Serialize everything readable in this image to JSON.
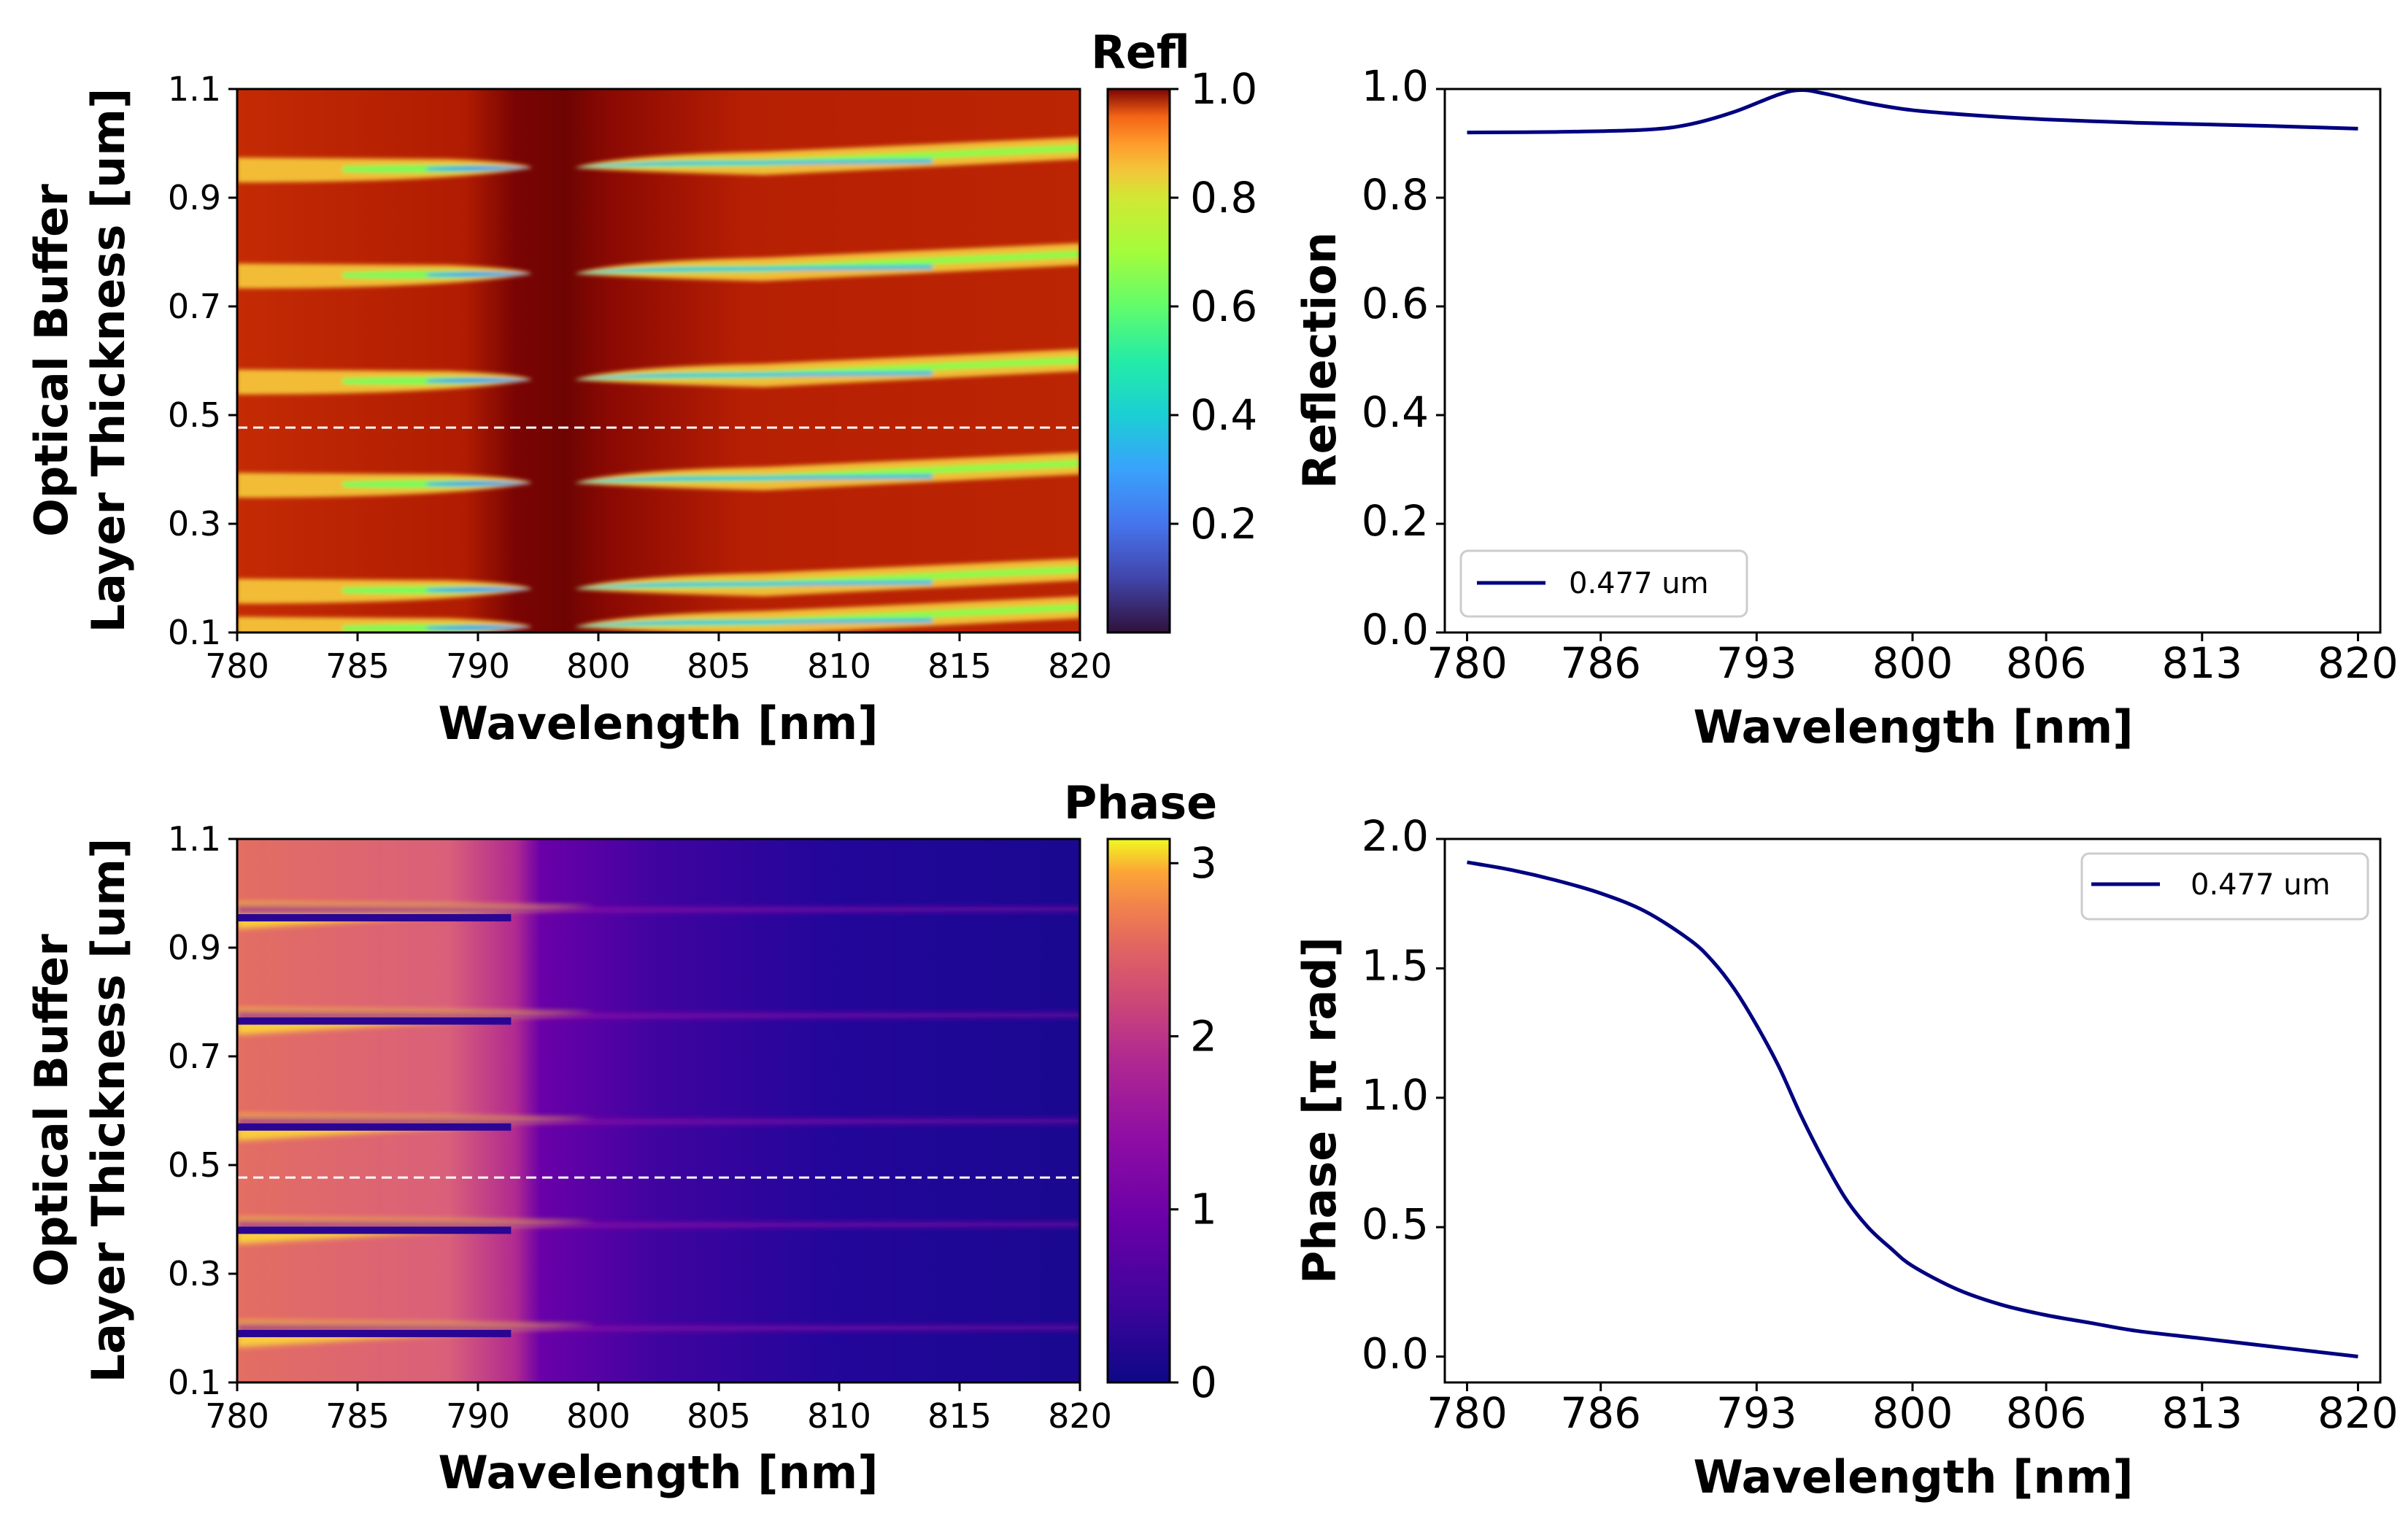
{
  "figure": {
    "layout": "2x2"
  },
  "chart_data": [
    {
      "type": "heatmap",
      "panel": "reflection-map",
      "xlabel": "Wavelength [nm]",
      "ylabel_lines": [
        "Optical Buffer",
        "Layer Thickness [um]"
      ],
      "xlim": [
        780,
        820
      ],
      "ylim": [
        0.1,
        1.1
      ],
      "xticks": [
        "780",
        "785",
        "790",
        "800",
        "805",
        "810",
        "815",
        "820"
      ],
      "yticks": [
        "0.1",
        "0.3",
        "0.5",
        "0.7",
        "0.9",
        "1.1"
      ],
      "colorbar": {
        "title": "Refl",
        "colormap": "turbo",
        "range": [
          0.0,
          1.0
        ],
        "ticks": [
          "0.2",
          "0.4",
          "0.6",
          "0.8",
          "1.0"
        ],
        "tick_values": [
          0.2,
          0.4,
          0.6,
          0.8,
          1.0
        ]
      },
      "reference_line": {
        "y": 0.477,
        "style": "dashed",
        "color": "#ffffff"
      },
      "features": {
        "resonance_bands_y": [
          0.11,
          0.18,
          0.375,
          0.565,
          0.76,
          0.955
        ],
        "anticrossing_x": 795,
        "band_colors": "#30123b to #a2fc3c"
      }
    },
    {
      "type": "line",
      "panel": "reflection-cut",
      "xlabel": "Wavelength [nm]",
      "ylabel": "Reflection",
      "xlim": [
        779,
        821
      ],
      "ylim": [
        0.0,
        1.0
      ],
      "xticks": [
        "780",
        "786",
        "793",
        "800",
        "806",
        "813",
        "820"
      ],
      "yticks": [
        "0.0",
        "0.2",
        "0.4",
        "0.6",
        "0.8",
        "1.0"
      ],
      "legend": {
        "position": "lower-left",
        "entries": [
          "0.477 um"
        ]
      },
      "series": [
        {
          "name": "0.477 um",
          "color": "#000080",
          "x": [
            780,
            784,
            788,
            790,
            792,
            794,
            795,
            796,
            798,
            800,
            803,
            806,
            810,
            813,
            816,
            820
          ],
          "y": [
            0.92,
            0.921,
            0.925,
            0.935,
            0.958,
            0.99,
            0.998,
            0.992,
            0.974,
            0.961,
            0.951,
            0.944,
            0.938,
            0.935,
            0.932,
            0.927
          ]
        }
      ]
    },
    {
      "type": "heatmap",
      "panel": "phase-map",
      "xlabel": "Wavelength [nm]",
      "ylabel_lines": [
        "Optical Buffer",
        "Layer Thickness [um]"
      ],
      "xlim": [
        780,
        820
      ],
      "ylim": [
        0.1,
        1.1
      ],
      "xticks": [
        "780",
        "785",
        "790",
        "800",
        "805",
        "810",
        "815",
        "820"
      ],
      "yticks": [
        "0.1",
        "0.3",
        "0.5",
        "0.7",
        "0.9",
        "1.1"
      ],
      "colorbar": {
        "title": "Phase",
        "colormap": "plasma",
        "range": [
          0,
          3.14
        ],
        "ticks": [
          "0",
          "1",
          "2",
          "3"
        ],
        "tick_values": [
          0,
          1,
          2,
          3
        ]
      },
      "reference_line": {
        "y": 0.477,
        "style": "dashed",
        "color": "#ffffff"
      },
      "features": {
        "bright_bands_y": [
          0.205,
          0.395,
          0.585,
          0.78,
          0.975
        ],
        "dark_bands_y": [
          0.19,
          0.38,
          0.57,
          0.765,
          0.955
        ],
        "transition_x": 795
      }
    },
    {
      "type": "line",
      "panel": "phase-cut",
      "xlabel": "Wavelength [nm]",
      "ylabel": "Phase [π rad]",
      "xlim": [
        779,
        821
      ],
      "ylim": [
        -0.1,
        2.0
      ],
      "xticks": [
        "780",
        "786",
        "793",
        "800",
        "806",
        "813",
        "820"
      ],
      "yticks": [
        "0.0",
        "0.5",
        "1.0",
        "1.5",
        "2.0"
      ],
      "tick_values": [
        0.0,
        0.5,
        1.0,
        1.5,
        2.0
      ],
      "legend": {
        "position": "upper-right",
        "entries": [
          "0.477 um"
        ]
      },
      "series": [
        {
          "name": "0.477 um",
          "color": "#000080",
          "x": [
            780,
            782,
            784,
            786,
            788,
            790,
            791,
            792,
            793,
            794,
            795,
            796,
            797,
            798,
            799,
            800,
            802,
            804,
            806,
            808,
            810,
            813,
            816,
            820
          ],
          "y": [
            1.91,
            1.88,
            1.84,
            1.79,
            1.72,
            1.61,
            1.53,
            1.42,
            1.28,
            1.12,
            0.93,
            0.76,
            0.61,
            0.5,
            0.42,
            0.35,
            0.26,
            0.2,
            0.16,
            0.13,
            0.1,
            0.07,
            0.04,
            0.0
          ]
        }
      ]
    }
  ]
}
